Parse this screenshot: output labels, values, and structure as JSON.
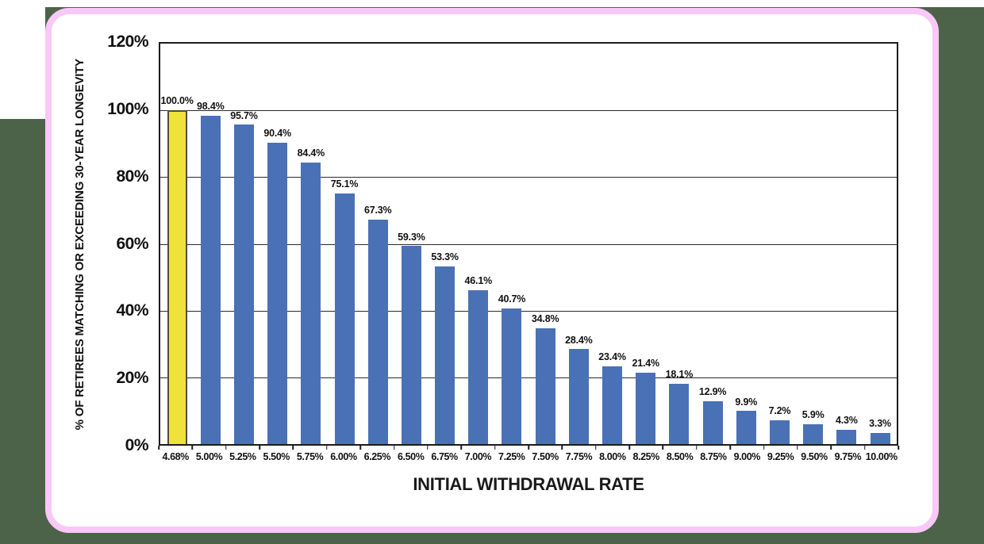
{
  "page": {
    "background_color": "#4c6349",
    "card_background": "#ffffff",
    "card_border_color": "#f9c8f7"
  },
  "chart_data": {
    "type": "bar",
    "title": "",
    "xlabel": "INITIAL WITHDRAWAL RATE",
    "ylabel": "% OF RETIREES MATCHING OR EXCEEDING 30-YEAR LONGEVITY",
    "categories": [
      "4.68%",
      "5.00%",
      "5.25%",
      "5.50%",
      "5.75%",
      "6.00%",
      "6.25%",
      "6.50%",
      "6.75%",
      "7.00%",
      "7.25%",
      "7.50%",
      "7.75%",
      "8.00%",
      "8.25%",
      "8.50%",
      "8.75%",
      "9.00%",
      "9.25%",
      "9.50%",
      "9.75%",
      "10.00%"
    ],
    "values": [
      100.0,
      98.4,
      95.7,
      90.4,
      84.4,
      75.1,
      67.3,
      59.3,
      53.3,
      46.1,
      40.7,
      34.8,
      28.4,
      23.4,
      21.4,
      18.1,
      12.9,
      9.9,
      7.2,
      5.9,
      4.3,
      3.3
    ],
    "value_labels": [
      "100.0%",
      "98.4%",
      "95.7%",
      "90.4%",
      "84.4%",
      "75.1%",
      "67.3%",
      "59.3%",
      "53.3%",
      "46.1%",
      "40.7%",
      "34.8%",
      "28.4%",
      "23.4%",
      "21.4%",
      "18.1%",
      "12.9%",
      "9.9%",
      "7.2%",
      "5.9%",
      "4.3%",
      "3.3%"
    ],
    "y_tick_labels": [
      "120%",
      "100%",
      "80%",
      "60%",
      "40%",
      "20%",
      "0%"
    ],
    "ylim": [
      0,
      120
    ],
    "grid": true,
    "legend": null,
    "highlight_index": 0,
    "colors": {
      "bar-default": "#4a71b5",
      "bar-highlight": "#f0e23c",
      "bar-highlight-border": "#4e4e38",
      "card-border": "#f9c8f7",
      "page-background": "#4c6349",
      "gridline": "#2b2b2b",
      "axis": "#1b1b1b"
    }
  }
}
